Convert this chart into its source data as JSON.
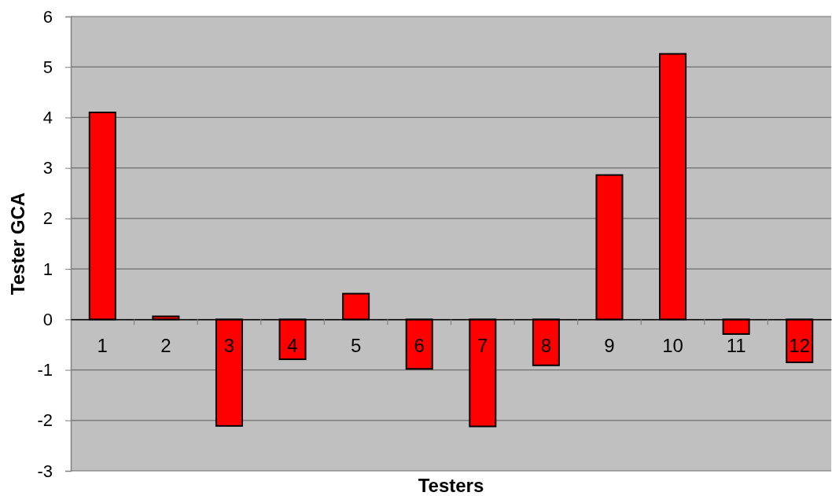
{
  "chart_data": {
    "type": "bar",
    "xlabel": "Testers",
    "ylabel": "Tester GCA",
    "categories": [
      "1",
      "2",
      "3",
      "4",
      "5",
      "6",
      "7",
      "8",
      "9",
      "10",
      "11",
      "12"
    ],
    "series": [
      {
        "color": "#ff0000",
        "values": [
          4.1,
          0.06,
          -2.11,
          -0.79,
          0.51,
          -0.98,
          -2.12,
          -0.91,
          2.86,
          5.26,
          -0.29,
          -0.85
        ]
      }
    ],
    "ylim": [
      -3,
      6
    ],
    "yticks": [
      -3,
      -2,
      -1,
      0,
      1,
      2,
      3,
      4,
      5,
      6
    ],
    "grid": "y"
  }
}
